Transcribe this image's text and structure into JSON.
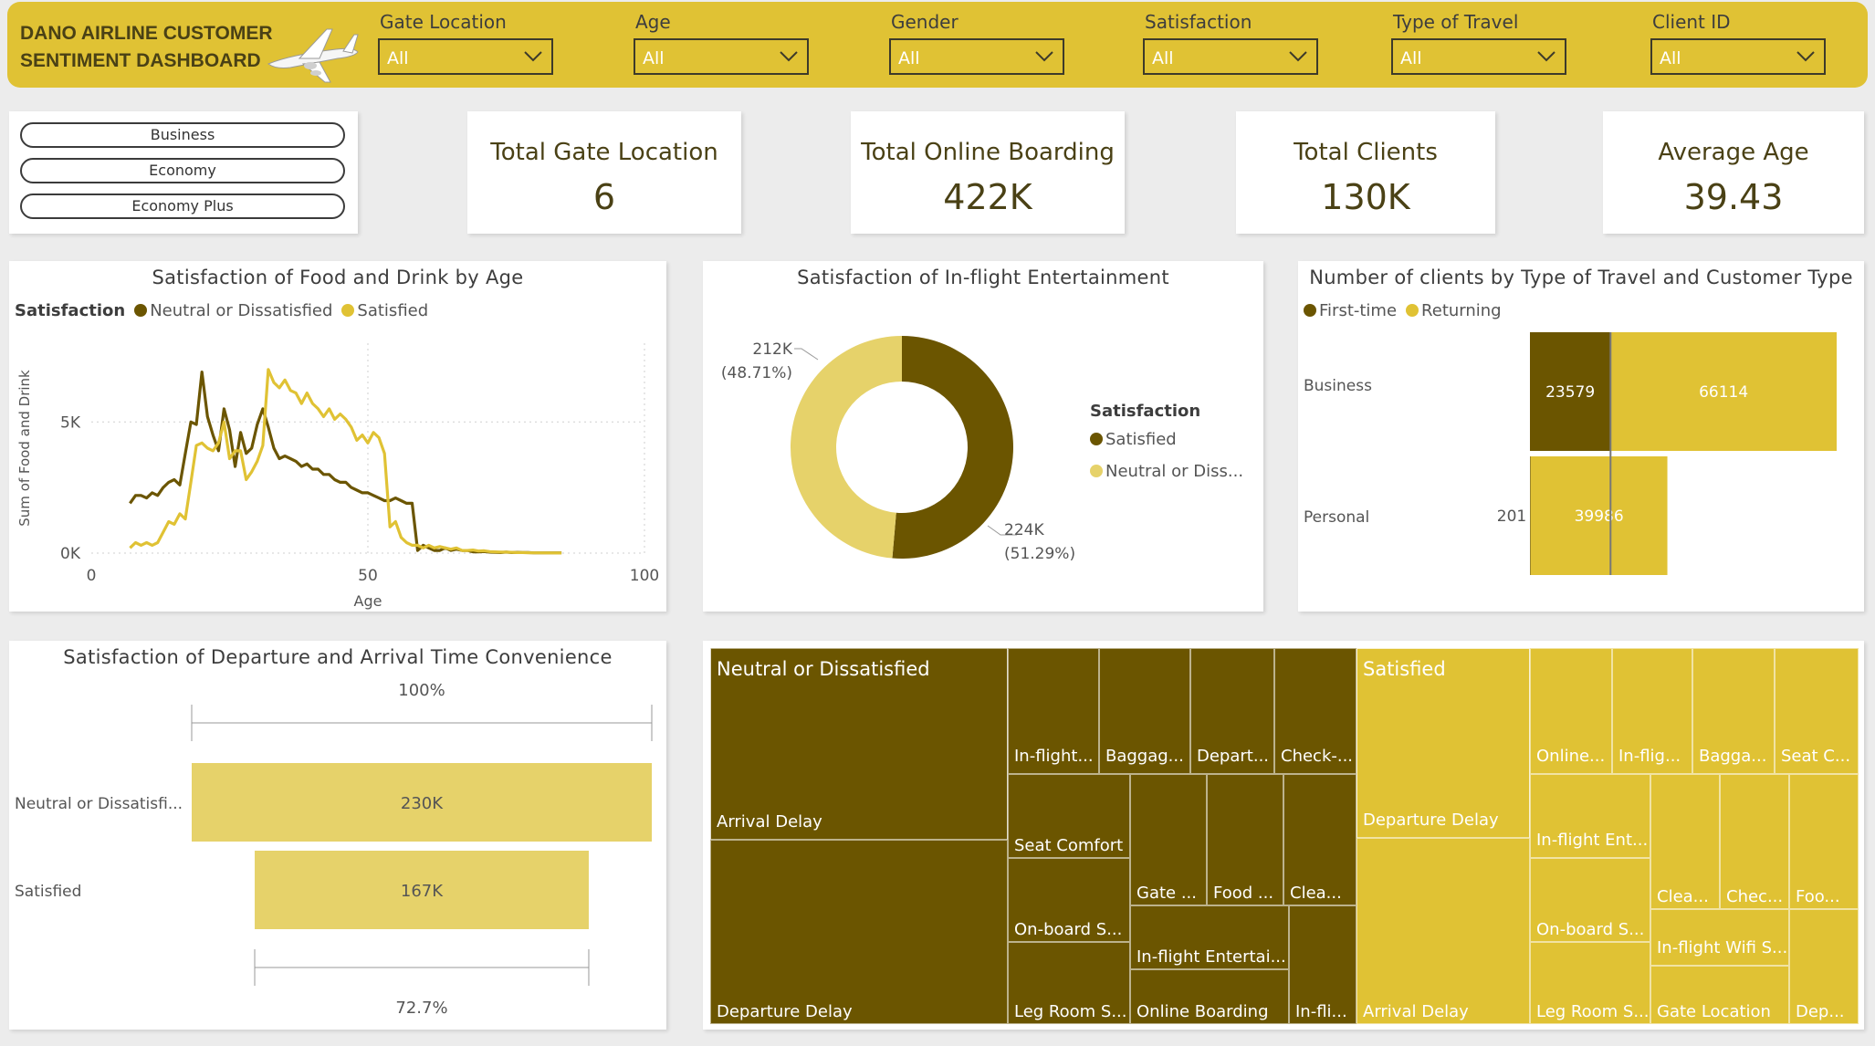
{
  "header": {
    "title": "DANO AIRLINE CUSTOMER SENTIMENT DASHBOARD",
    "slicers": [
      {
        "label": "Gate Location",
        "value": "All"
      },
      {
        "label": "Age",
        "value": "All"
      },
      {
        "label": "Gender",
        "value": "All"
      },
      {
        "label": "Satisfaction",
        "value": "All"
      },
      {
        "label": "Type of Travel",
        "value": "All"
      },
      {
        "label": "Client ID",
        "value": "All"
      }
    ]
  },
  "class_buttons": [
    "Business",
    "Economy",
    "Economy Plus"
  ],
  "kpis": [
    {
      "title": "Total Gate Location",
      "value": "6"
    },
    {
      "title": "Total Online Boarding",
      "value": "422K"
    },
    {
      "title": "Total Clients",
      "value": "130K"
    },
    {
      "title": "Average Age",
      "value": "39.43"
    }
  ],
  "colors": {
    "header": "#e0c234",
    "dark": "#6b5500",
    "light": "#e0c234",
    "pale": "#e6d26a"
  },
  "line_chart": {
    "title": "Satisfaction of Food and Drink by Age",
    "legend_title": "Satisfaction",
    "series_names": [
      "Neutral or Dissatisfied",
      "Satisfied"
    ],
    "xlabel": "Age",
    "ylabel": "Sum of Food and Drink",
    "x_ticks": [
      "0",
      "50",
      "100"
    ],
    "y_ticks": [
      "0K",
      "5K"
    ]
  },
  "donut_chart": {
    "title": "Satisfaction of In-flight Entertainment",
    "legend_title": "Satisfaction",
    "legend_items": [
      "Satisfied",
      "Neutral or Diss..."
    ],
    "labels": [
      {
        "value": "224K",
        "pct": "(51.29%)"
      },
      {
        "value": "212K",
        "pct": "(48.71%)"
      }
    ]
  },
  "bar_chart": {
    "title": "Number of clients by Type of Travel and Customer Type",
    "legend_items": [
      "First-time",
      "Returning"
    ],
    "rows": [
      {
        "label": "Business",
        "first": "23579",
        "returning": "66114"
      },
      {
        "label": "Personal",
        "first": "201",
        "returning": "39986"
      }
    ]
  },
  "funnel_chart": {
    "title": "Satisfaction of Departure and Arrival Time Convenience",
    "top_pct": "100%",
    "bottom_pct": "72.7%",
    "rows": [
      {
        "label": "Neutral or Dissatisfi...",
        "value": "230K"
      },
      {
        "label": "Satisfied",
        "value": "167K"
      }
    ]
  },
  "treemap": {
    "neutral": {
      "title": "Neutral or Dissatisfied",
      "items": [
        "Arrival Delay",
        "Departure Delay",
        "In-flight...",
        "Baggag...",
        "Depart...",
        "Check-...",
        "Seat Comfort",
        "Gate ...",
        "Food ...",
        "Clea...",
        "On-board S...",
        "In-flight Entertai...",
        "Leg Room S...",
        "Online Boarding",
        "In-fli..."
      ]
    },
    "satisfied": {
      "title": "Satisfied",
      "items": [
        "Departure Delay",
        "Arrival Delay",
        "Online...",
        "In-flig...",
        "Bagga...",
        "Seat C...",
        "In-flight Ent...",
        "Clea...",
        "Chec...",
        "Foo...",
        "On-board S...",
        "In-flight Wifi S...",
        "Leg Room S...",
        "Gate Location",
        "Dep..."
      ]
    }
  },
  "chart_data": [
    {
      "type": "line",
      "title": "Satisfaction of Food and Drink by Age",
      "xlabel": "Age",
      "ylabel": "Sum of Food and Drink",
      "xlim": [
        0,
        100
      ],
      "ylim": [
        0,
        8000
      ],
      "grid": true,
      "legend": "top-left",
      "series": [
        {
          "name": "Neutral or Dissatisfied",
          "color": "#6b5500",
          "x": [
            7,
            8,
            9,
            10,
            11,
            12,
            13,
            14,
            15,
            16,
            17,
            18,
            19,
            20,
            21,
            22,
            23,
            24,
            25,
            26,
            27,
            28,
            29,
            30,
            31,
            32,
            33,
            34,
            35,
            36,
            37,
            38,
            39,
            40,
            41,
            42,
            43,
            44,
            45,
            46,
            47,
            48,
            49,
            50,
            51,
            52,
            53,
            54,
            55,
            56,
            57,
            58,
            59,
            60,
            61,
            62,
            63,
            64,
            65,
            66,
            67,
            68,
            69,
            70,
            71,
            72,
            73,
            74,
            75,
            76,
            77,
            78,
            79,
            80,
            85
          ],
          "y": [
            1900,
            2200,
            2200,
            2100,
            2300,
            2200,
            2500,
            2700,
            2800,
            2600,
            3800,
            5000,
            4900,
            6900,
            5200,
            4500,
            3900,
            5500,
            4700,
            3300,
            4600,
            3800,
            4000,
            4900,
            5500,
            4800,
            4000,
            3600,
            3700,
            3600,
            3500,
            3300,
            3400,
            3200,
            3200,
            3000,
            3000,
            2800,
            2700,
            2700,
            2500,
            2400,
            2300,
            2300,
            2200,
            2100,
            2000,
            2000,
            2100,
            2000,
            1900,
            1900,
            100,
            300,
            200,
            100,
            100,
            200,
            100,
            150,
            100,
            100,
            50,
            50,
            60,
            40,
            30,
            20,
            40,
            20,
            30,
            20,
            20,
            10,
            10
          ]
        },
        {
          "name": "Satisfied",
          "color": "#e0c234",
          "x": [
            7,
            8,
            9,
            10,
            11,
            12,
            13,
            14,
            15,
            16,
            17,
            18,
            19,
            20,
            21,
            22,
            23,
            24,
            25,
            26,
            27,
            28,
            29,
            30,
            31,
            32,
            33,
            34,
            35,
            36,
            37,
            38,
            39,
            40,
            41,
            42,
            43,
            44,
            45,
            46,
            47,
            48,
            49,
            50,
            51,
            52,
            53,
            54,
            55,
            56,
            57,
            58,
            59,
            60,
            61,
            62,
            63,
            64,
            65,
            66,
            67,
            68,
            69,
            70,
            71,
            72,
            73,
            74,
            75,
            76,
            77,
            78,
            79,
            80,
            85
          ],
          "y": [
            200,
            400,
            300,
            400,
            300,
            400,
            800,
            1200,
            1100,
            1500,
            1300,
            2700,
            4100,
            4200,
            4000,
            3900,
            4200,
            5000,
            3600,
            3900,
            3900,
            2800,
            3100,
            3500,
            4100,
            7000,
            6500,
            6300,
            6600,
            6200,
            6100,
            5700,
            6100,
            5700,
            5500,
            5200,
            5500,
            5100,
            5300,
            5100,
            4800,
            4300,
            4500,
            4200,
            4600,
            4400,
            3800,
            1000,
            1200,
            600,
            400,
            300,
            300,
            200,
            300,
            200,
            250,
            200,
            150,
            200,
            100,
            100,
            120,
            80,
            90,
            60,
            50,
            40,
            40,
            30,
            20,
            20,
            15,
            10,
            5
          ]
        }
      ]
    },
    {
      "type": "pie",
      "title": "Satisfaction of In-flight Entertainment",
      "donut": true,
      "categories": [
        "Satisfied",
        "Neutral or Dissatisfied"
      ],
      "values": [
        224000,
        212000
      ],
      "percents": [
        51.29,
        48.71
      ],
      "colors": [
        "#6b5500",
        "#e6d26a"
      ]
    },
    {
      "type": "bar",
      "orientation": "horizontal",
      "stacked": true,
      "title": "Number of clients by Type of Travel and Customer Type",
      "categories": [
        "Business",
        "Personal"
      ],
      "series": [
        {
          "name": "First-time",
          "values": [
            23579,
            201
          ],
          "color": "#6b5500"
        },
        {
          "name": "Returning",
          "values": [
            66114,
            39986
          ],
          "color": "#e0c234"
        }
      ]
    },
    {
      "type": "bar",
      "orientation": "horizontal",
      "subtype": "funnel",
      "title": "Satisfaction of Departure and Arrival Time Convenience",
      "categories": [
        "Neutral or Dissatisfied",
        "Satisfied"
      ],
      "values": [
        230000,
        167000
      ],
      "percents_of_first": [
        100,
        72.7
      ],
      "color": "#e6d26a"
    }
  ]
}
